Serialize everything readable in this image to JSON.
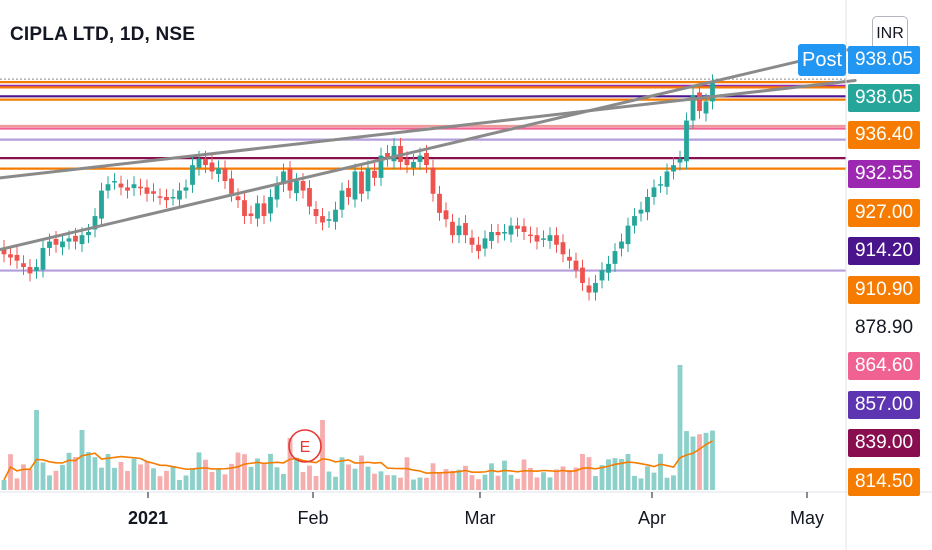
{
  "header": {
    "symbol_title": "CIPLA LTD, 1D, NSE",
    "currency": "INR",
    "post_label": "Post"
  },
  "chart_data": {
    "type": "candlestick",
    "x_ticks": [
      "2021",
      "Feb",
      "Mar",
      "Apr",
      "May"
    ],
    "y_range": [
      810,
      945
    ],
    "price_labels": [
      {
        "value": "938.05",
        "color": "#2196f3"
      },
      {
        "value": "938.05",
        "color": "#26a69a"
      },
      {
        "value": "936.40",
        "color": "#f57c00"
      },
      {
        "value": "932.55",
        "color": "#9c27b0"
      },
      {
        "value": "927.00",
        "color": "#f57c00"
      },
      {
        "value": "914.20",
        "color": "#4a148c"
      },
      {
        "value": "910.90",
        "color": "#f57c00"
      },
      {
        "value": "878.90",
        "color": "#ffffff"
      },
      {
        "value": "864.60",
        "color": "#f06292"
      },
      {
        "value": "857.00",
        "color": "#5e35b1"
      },
      {
        "value": "839.00",
        "color": "#880e4f"
      },
      {
        "value": "814.50",
        "color": "#f57c00"
      }
    ],
    "horizontal_lines": [
      {
        "price": 939.0,
        "color": "#888888",
        "style": "dotted"
      },
      {
        "price": 938.05,
        "color": "#f57c00"
      },
      {
        "price": 936.9,
        "color": "#9c27b0"
      },
      {
        "price": 936.4,
        "color": "#f57c00"
      },
      {
        "price": 933.6,
        "color": "#4a148c"
      },
      {
        "price": 932.55,
        "color": "#f57c00"
      },
      {
        "price": 924.3,
        "color": "#ef9a9a"
      },
      {
        "price": 923.5,
        "color": "#f06292"
      },
      {
        "price": 920.0,
        "color": "#b39ddb"
      },
      {
        "price": 914.2,
        "color": "#880e4f"
      },
      {
        "price": 910.9,
        "color": "#f57c00"
      },
      {
        "price": 878.9,
        "color": "#b39ddb"
      }
    ],
    "trendlines": [
      {
        "from": [
          0,
          885.5
        ],
        "to": [
          0.92,
          943.0
        ],
        "color": "#8a8a8a"
      },
      {
        "from": [
          0,
          908.0
        ],
        "to": [
          0.92,
          935.8
        ],
        "color": "#8a8a8a"
      }
    ],
    "candles_close": [
      884,
      883,
      882,
      880,
      878,
      880,
      886,
      888,
      887,
      888,
      889,
      888,
      890,
      891,
      896,
      904,
      906,
      907,
      905,
      904,
      906,
      905,
      903,
      903,
      902,
      901,
      902,
      904,
      905,
      912,
      914,
      912,
      910,
      911,
      907,
      903,
      901,
      896,
      896,
      900,
      896,
      902,
      906,
      910,
      904,
      907,
      904,
      899,
      896,
      894,
      895,
      898,
      904,
      902,
      910,
      903,
      911,
      908,
      915,
      914,
      918,
      913,
      912,
      913,
      915,
      912,
      903,
      897,
      895,
      890,
      893,
      890,
      887,
      885,
      889,
      891,
      890,
      891,
      893,
      892,
      891,
      890,
      888,
      889,
      890,
      887,
      884,
      882,
      879,
      875,
      872,
      875,
      879,
      881,
      885,
      888,
      893,
      896,
      898,
      902,
      905,
      906,
      910,
      912,
      914,
      926,
      934,
      929,
      932,
      938
    ],
    "volume_ma_color": "#f57c00",
    "up_color": "#26a69a",
    "down_color": "#ef5350"
  }
}
